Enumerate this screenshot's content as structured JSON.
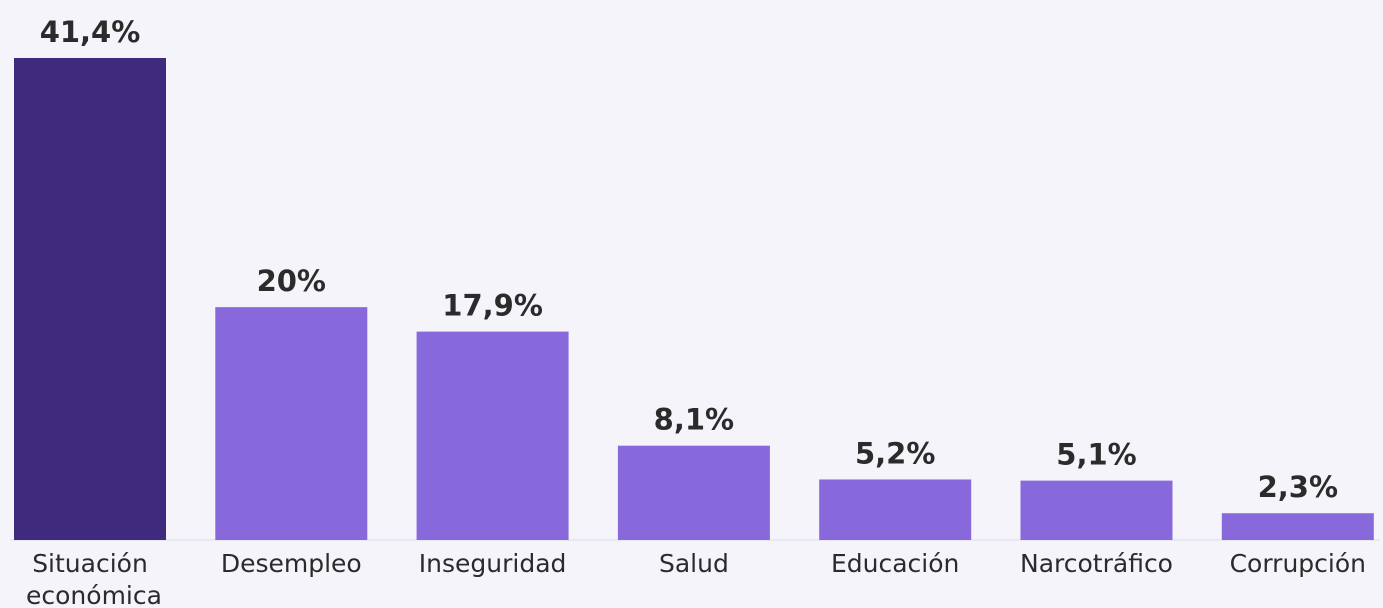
{
  "chart_data": {
    "type": "bar",
    "categories": [
      "Situación económica",
      "Desempleo",
      "Inseguridad",
      "Salud",
      "Educación",
      "Narcotráfico",
      "Corrupción"
    ],
    "values": [
      41.4,
      20,
      17.9,
      8.1,
      5.2,
      5.1,
      2.3
    ],
    "value_labels": [
      "41,4%",
      "20%",
      "17,9%",
      "8,1%",
      "5,2%",
      "5,1%",
      "2,3%"
    ],
    "colors": [
      "#3f2a7e",
      "#8769dc",
      "#8769dc",
      "#8769dc",
      "#8769dc",
      "#8769dc",
      "#8769dc"
    ]
  }
}
